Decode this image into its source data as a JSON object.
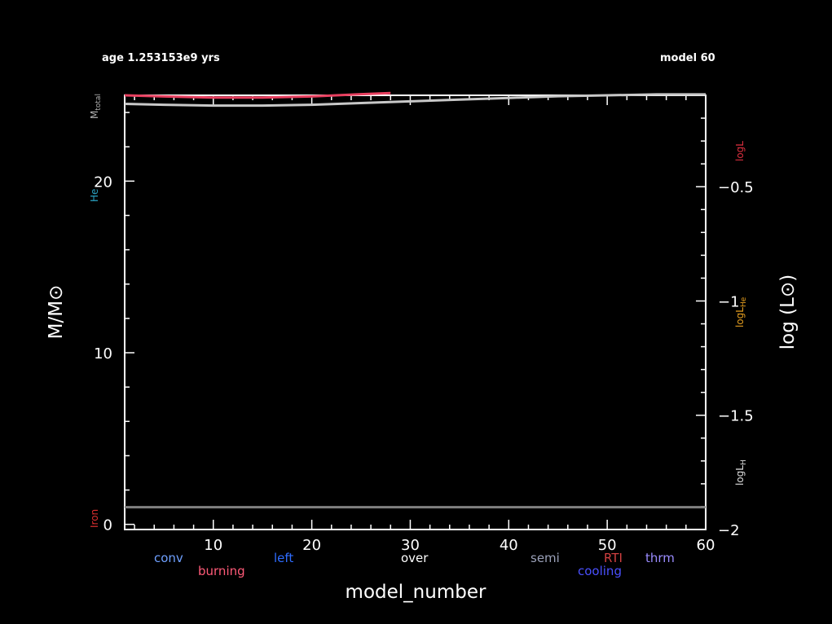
{
  "header": {
    "age_text": "age 1.253153e9 yrs",
    "model_text": "model 60"
  },
  "chart_data": {
    "type": "line",
    "xlabel": "model_number",
    "ylabel_left": "M/M⊙",
    "ylabel_right": "log (L⊙)",
    "xlim": [
      1,
      60
    ],
    "ylim_left": [
      -0.3,
      25
    ],
    "ylim_right": [
      -2,
      -0.1
    ],
    "x_ticks": [
      10,
      20,
      30,
      40,
      50,
      60
    ],
    "y_left_ticks": [
      0,
      10,
      20
    ],
    "y_right_ticks": [
      -0.5,
      -1,
      -1.5,
      -2
    ],
    "x_tick_labels": [
      "10",
      "20",
      "30",
      "40",
      "50",
      "60"
    ],
    "y_left_tick_labels": [
      "0",
      "10",
      "20"
    ],
    "y_right_tick_labels": [
      "−0.5",
      "−1",
      "−1.5",
      "−2"
    ],
    "series": [
      {
        "name": "M_total",
        "axis": "left",
        "color": "#c8c8c8",
        "x": [
          1,
          5,
          10,
          15,
          20,
          25,
          30,
          35,
          40,
          45,
          50,
          55,
          60
        ],
        "y": [
          24.5,
          24.45,
          24.4,
          24.4,
          24.45,
          24.55,
          24.65,
          24.75,
          24.85,
          24.95,
          25.0,
          25.05,
          25.05
        ]
      },
      {
        "name": "log L",
        "axis": "right",
        "color": "#e84060",
        "x": [
          1,
          5,
          10,
          15,
          20,
          25,
          28
        ],
        "y": [
          -0.1,
          -0.105,
          -0.11,
          -0.11,
          -0.105,
          -0.095,
          -0.09
        ]
      },
      {
        "name": "Iron",
        "axis": "left",
        "color": "#808080",
        "x": [
          1,
          60
        ],
        "y": [
          1.0,
          1.0
        ]
      }
    ],
    "side_labels": {
      "m_total": "M",
      "m_total_sub": "total",
      "he": "He",
      "iron": "Iron",
      "logL": "logL",
      "logL_He": "logL",
      "logL_He_sub": "He",
      "logL_H": "logL",
      "logL_H_sub": "H"
    },
    "legend": [
      {
        "label": "conv",
        "color": "#6fa0ff"
      },
      {
        "label": "burning",
        "color": "#ff5a78"
      },
      {
        "label": "left",
        "color": "#2e6cff"
      },
      {
        "label": "over",
        "color": "#ffffff"
      },
      {
        "label": "semi",
        "color": "#9aa0b8"
      },
      {
        "label": "RTI",
        "color": "#d04040"
      },
      {
        "label": "cooling",
        "color": "#4a50ff"
      },
      {
        "label": "thrm",
        "color": "#9a8cff"
      }
    ],
    "colors": {
      "background": "#000000",
      "frame": "#ffffff",
      "logL_He_label": "#e8a020",
      "he_label": "#2aa0c0",
      "iron_label": "#e03030",
      "logL_label": "#e03040",
      "m_total_label": "#b0b0b0",
      "logL_H_label": "#e0e0e0"
    }
  }
}
